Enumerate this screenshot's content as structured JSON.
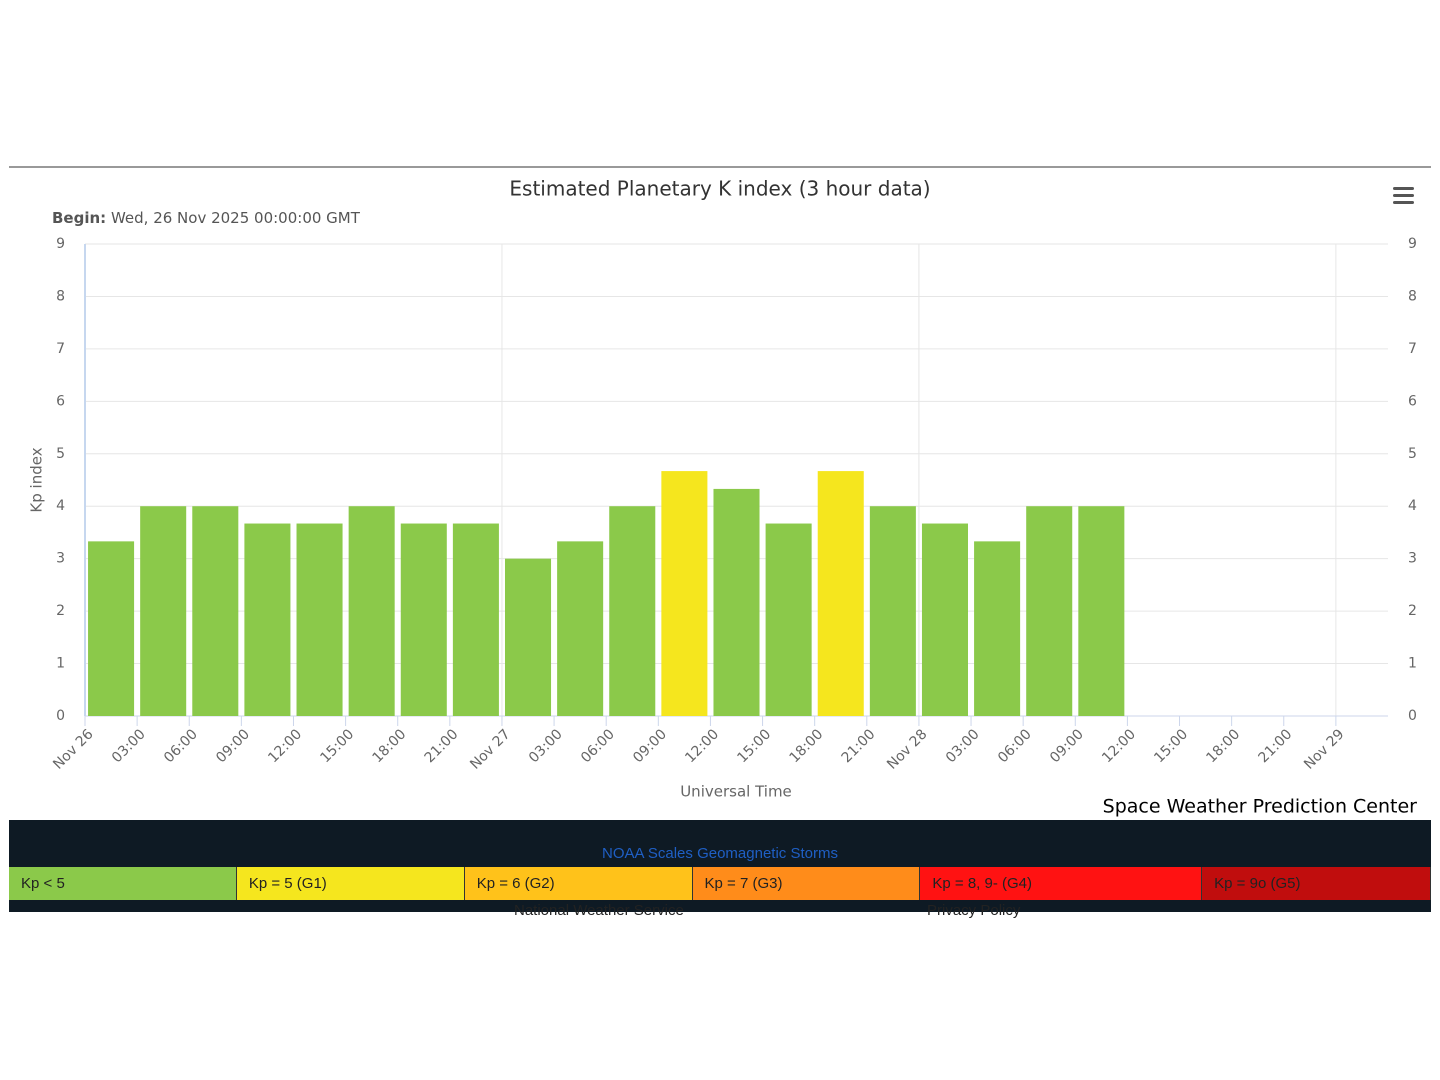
{
  "chart_data": {
    "type": "bar",
    "title": "Estimated Planetary K index (3 hour data)",
    "subtitle_label": "Begin:",
    "subtitle": "Wed, 26 Nov 2025 00:00:00 GMT",
    "y_label": "Kp index",
    "x_label": "Universal Time",
    "credit": "Space Weather Prediction Center",
    "x": [
      1.5,
      4.5,
      7.5,
      10.5,
      13.5,
      16.5,
      19.5,
      22.5,
      25.5,
      28.5,
      31.5,
      34.5,
      37.5,
      40.5,
      43.5,
      46.5,
      49.5,
      52.5,
      55.5,
      58.5
    ],
    "values": [
      3.33,
      4,
      4,
      3.67,
      3.67,
      4,
      3.67,
      3.67,
      3,
      3.33,
      4,
      4.67,
      4.33,
      3.67,
      4.67,
      4,
      3.67,
      3.33,
      4,
      4
    ],
    "colors": [
      "#8bc94a",
      "#8bc94a",
      "#8bc94a",
      "#8bc94a",
      "#8bc94a",
      "#8bc94a",
      "#8bc94a",
      "#8bc94a",
      "#8bc94a",
      "#8bc94a",
      "#8bc94a",
      "#f5e61e",
      "#8bc94a",
      "#8bc94a",
      "#f5e61e",
      "#8bc94a",
      "#8bc94a",
      "#8bc94a",
      "#8bc94a",
      "#8bc94a"
    ],
    "bar_width_hours": 2.65,
    "xlim": [
      0,
      75
    ],
    "xticks": [
      {
        "value": 0,
        "label": "Nov 26"
      },
      {
        "value": 3,
        "label": "03:00"
      },
      {
        "value": 6,
        "label": "06:00"
      },
      {
        "value": 9,
        "label": "09:00"
      },
      {
        "value": 12,
        "label": "12:00"
      },
      {
        "value": 15,
        "label": "15:00"
      },
      {
        "value": 18,
        "label": "18:00"
      },
      {
        "value": 21,
        "label": "21:00"
      },
      {
        "value": 24,
        "label": "Nov 27"
      },
      {
        "value": 27,
        "label": "03:00"
      },
      {
        "value": 30,
        "label": "06:00"
      },
      {
        "value": 33,
        "label": "09:00"
      },
      {
        "value": 36,
        "label": "12:00"
      },
      {
        "value": 39,
        "label": "15:00"
      },
      {
        "value": 42,
        "label": "18:00"
      },
      {
        "value": 45,
        "label": "21:00"
      },
      {
        "value": 48,
        "label": "Nov 28"
      },
      {
        "value": 51,
        "label": "03:00"
      },
      {
        "value": 54,
        "label": "06:00"
      },
      {
        "value": 57,
        "label": "09:00"
      },
      {
        "value": 60,
        "label": "12:00"
      },
      {
        "value": 63,
        "label": "15:00"
      },
      {
        "value": 66,
        "label": "18:00"
      },
      {
        "value": 69,
        "label": "21:00"
      },
      {
        "value": 72,
        "label": "Nov 29"
      }
    ],
    "xgrid": [
      0,
      24,
      48,
      72
    ],
    "ylim": [
      0,
      9
    ],
    "yticks": [
      0,
      1,
      2,
      3,
      4,
      5,
      6,
      7,
      8,
      9
    ],
    "grid": true,
    "mirror_y_axis": true
  },
  "footer": {
    "link": "NOAA Scales Geomagnetic Storms",
    "left": "National Weather Service",
    "right": "Privacy Policy",
    "scale": [
      {
        "label": "Kp < 5",
        "color": "#8bc94a"
      },
      {
        "label": "Kp = 5 (G1)",
        "color": "#f5e61e"
      },
      {
        "label": "Kp = 6 (G2)",
        "color": "#ffc21a"
      },
      {
        "label": "Kp = 7 (G3)",
        "color": "#ff8c1a"
      },
      {
        "label": "Kp = 8, 9- (G4)",
        "color": "#ff1212"
      },
      {
        "label": "Kp = 9o (G5)",
        "color": "#c00d0d"
      }
    ]
  }
}
